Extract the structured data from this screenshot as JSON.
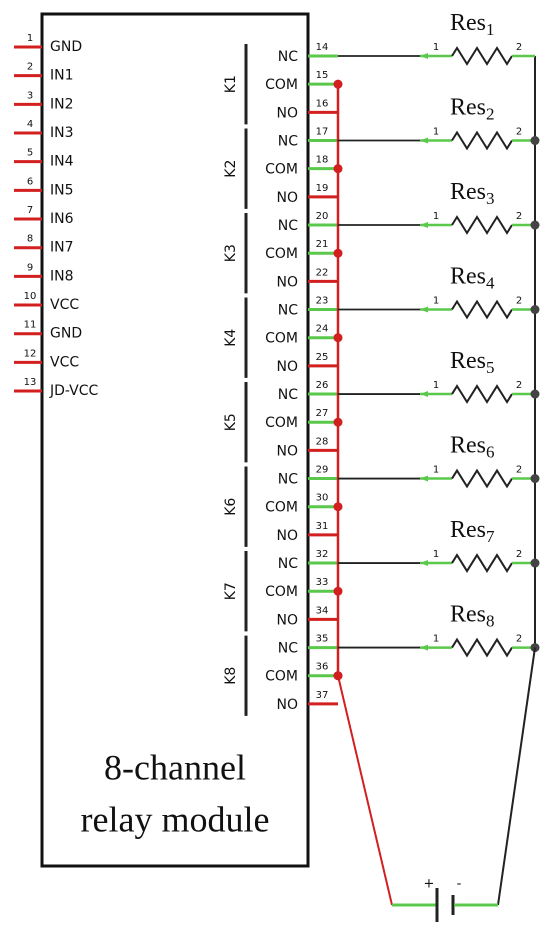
{
  "title_lines": [
    "8-channel",
    "relay module"
  ],
  "left_pins": [
    {
      "number": 1,
      "label": "GND"
    },
    {
      "number": 2,
      "label": "IN1"
    },
    {
      "number": 3,
      "label": "IN2"
    },
    {
      "number": 4,
      "label": "IN3"
    },
    {
      "number": 5,
      "label": "IN4"
    },
    {
      "number": 6,
      "label": "IN5"
    },
    {
      "number": 7,
      "label": "IN6"
    },
    {
      "number": 8,
      "label": "IN7"
    },
    {
      "number": 9,
      "label": "IN8"
    },
    {
      "number": 10,
      "label": "VCC"
    },
    {
      "number": 11,
      "label": "GND"
    },
    {
      "number": 12,
      "label": "VCC"
    },
    {
      "number": 13,
      "label": "JD-VCC"
    }
  ],
  "right_pins": [
    {
      "number": 14,
      "label": "NC"
    },
    {
      "number": 15,
      "label": "COM"
    },
    {
      "number": 16,
      "label": "NO"
    },
    {
      "number": 17,
      "label": "NC"
    },
    {
      "number": 18,
      "label": "COM"
    },
    {
      "number": 19,
      "label": "NO"
    },
    {
      "number": 20,
      "label": "NC"
    },
    {
      "number": 21,
      "label": "COM"
    },
    {
      "number": 22,
      "label": "NO"
    },
    {
      "number": 23,
      "label": "NC"
    },
    {
      "number": 24,
      "label": "COM"
    },
    {
      "number": 25,
      "label": "NO"
    },
    {
      "number": 26,
      "label": "NC"
    },
    {
      "number": 27,
      "label": "COM"
    },
    {
      "number": 28,
      "label": "NO"
    },
    {
      "number": 29,
      "label": "NC"
    },
    {
      "number": 30,
      "label": "COM"
    },
    {
      "number": 31,
      "label": "NO"
    },
    {
      "number": 32,
      "label": "NC"
    },
    {
      "number": 33,
      "label": "COM"
    },
    {
      "number": 34,
      "label": "NO"
    },
    {
      "number": 35,
      "label": "NC"
    },
    {
      "number": 36,
      "label": "COM"
    },
    {
      "number": 37,
      "label": "NO"
    }
  ],
  "relays": [
    "K1",
    "K2",
    "K3",
    "K4",
    "K5",
    "K6",
    "K7",
    "K8"
  ],
  "resistors": [
    {
      "name": "Res",
      "index": 1,
      "pin1": 1,
      "pin2": 2
    },
    {
      "name": "Res",
      "index": 2,
      "pin1": 1,
      "pin2": 2
    },
    {
      "name": "Res",
      "index": 3,
      "pin1": 1,
      "pin2": 2
    },
    {
      "name": "Res",
      "index": 4,
      "pin1": 1,
      "pin2": 2
    },
    {
      "name": "Res",
      "index": 5,
      "pin1": 1,
      "pin2": 2
    },
    {
      "name": "Res",
      "index": 6,
      "pin1": 1,
      "pin2": 2
    },
    {
      "name": "Res",
      "index": 7,
      "pin1": 1,
      "pin2": 2
    },
    {
      "name": "Res",
      "index": 8,
      "pin1": 1,
      "pin2": 2
    }
  ],
  "battery": {
    "plus": "+",
    "minus": "-"
  }
}
